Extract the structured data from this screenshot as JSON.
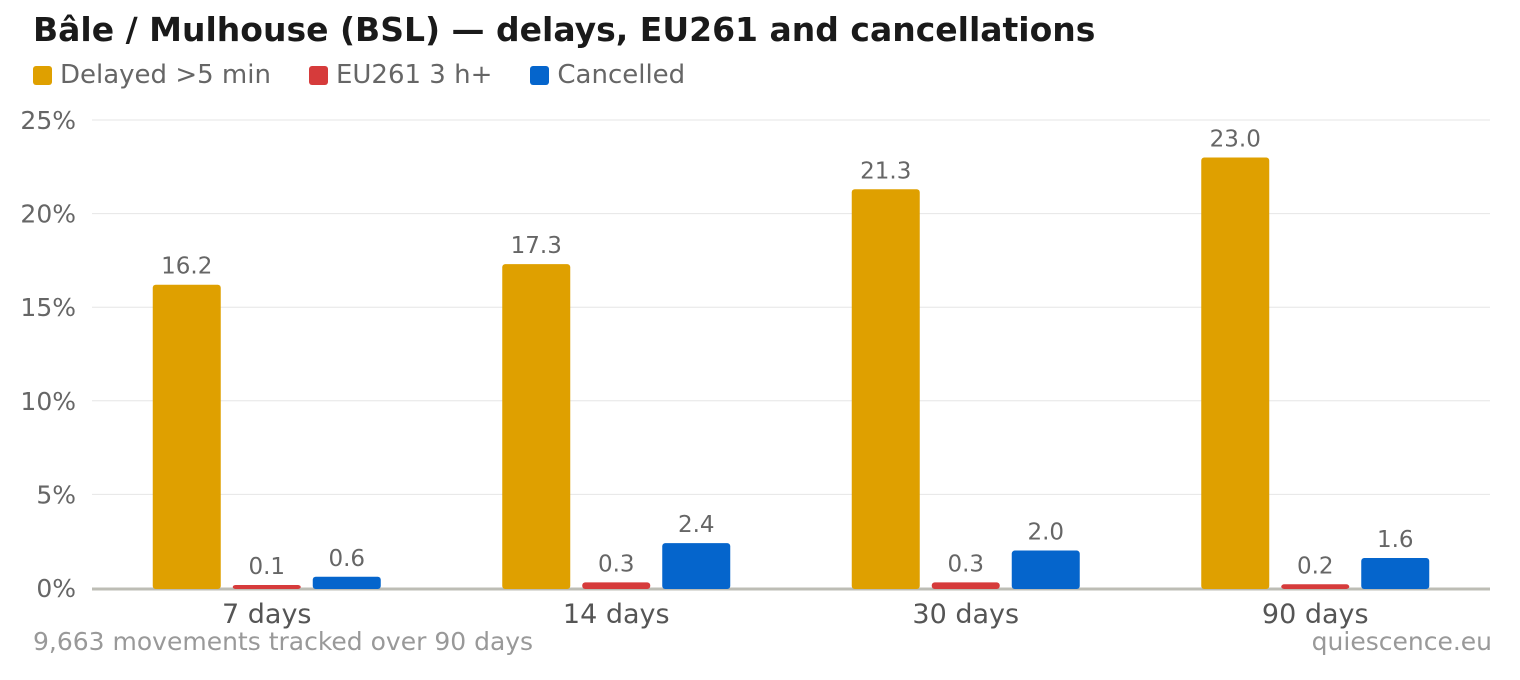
{
  "title": "Bâle / Mulhouse (BSL) — delays, EU261 and cancellations",
  "footer": {
    "note": "9,663 movements tracked over 90 days",
    "source": "quiescence.eu"
  },
  "chart_data": {
    "type": "bar",
    "title": "Bâle / Mulhouse (BSL) — delays, EU261 and cancellations",
    "xlabel": "",
    "ylabel": "",
    "categories": [
      "7 days",
      "14 days",
      "30 days",
      "90 days"
    ],
    "series": [
      {
        "name": "Delayed >5 min",
        "color": "#dfa000",
        "values": [
          16.2,
          17.3,
          21.3,
          23.0
        ]
      },
      {
        "name": "EU261 3 h+",
        "color": "#d63b3b",
        "values": [
          0.1,
          0.3,
          0.3,
          0.2
        ]
      },
      {
        "name": "Cancelled",
        "color": "#0565cc",
        "values": [
          0.6,
          2.4,
          2.0,
          1.6
        ]
      }
    ],
    "ylim": [
      0,
      25
    ],
    "yticks": [
      0,
      5,
      10,
      15,
      20,
      25
    ],
    "ytick_labels": [
      "0%",
      "5%",
      "10%",
      "15%",
      "20%",
      "25%"
    ],
    "grid": true,
    "legend": "top-left"
  }
}
